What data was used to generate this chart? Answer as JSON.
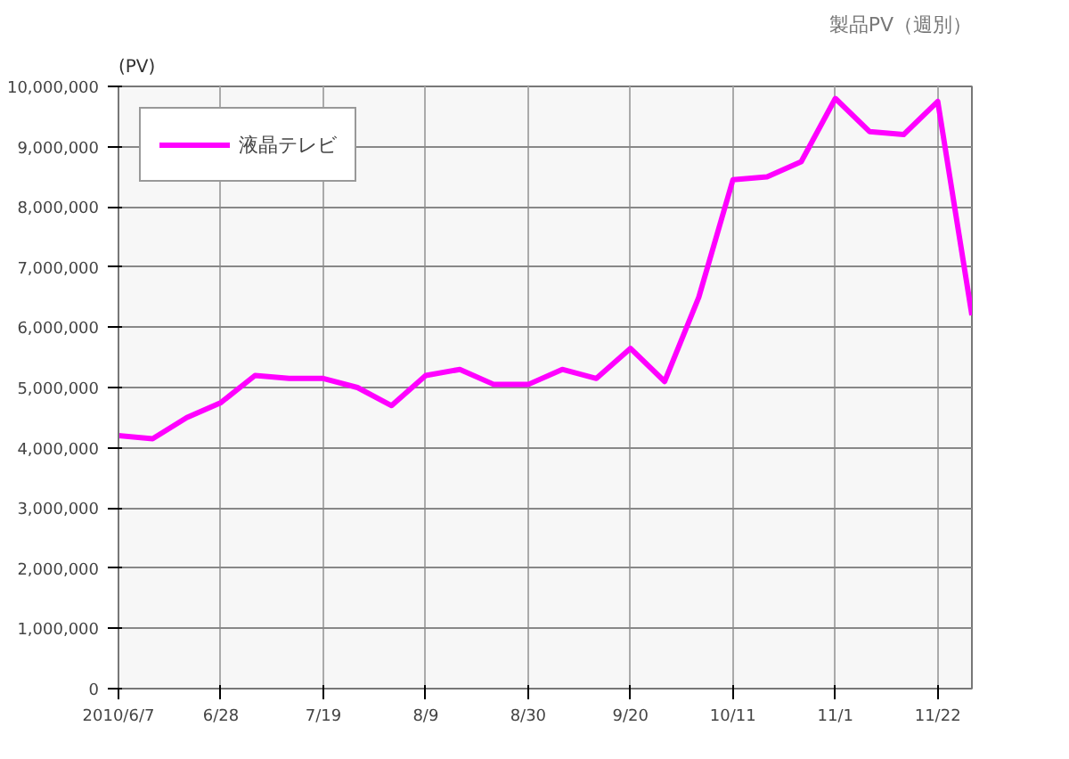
{
  "chart_data": {
    "type": "line",
    "title": "製品PV（週別）",
    "ylabel": "(PV)",
    "x": [
      "2010-06-07",
      "2010-06-14",
      "2010-06-21",
      "2010-06-28",
      "2010-07-05",
      "2010-07-12",
      "2010-07-19",
      "2010-07-26",
      "2010-08-02",
      "2010-08-09",
      "2010-08-16",
      "2010-08-23",
      "2010-08-30",
      "2010-09-06",
      "2010-09-13",
      "2010-09-20",
      "2010-09-27",
      "2010-10-04",
      "2010-10-11",
      "2010-10-18",
      "2010-10-25",
      "2010-11-01",
      "2010-11-08",
      "2010-11-15",
      "2010-11-22",
      "2010-11-29"
    ],
    "series": [
      {
        "name": "液晶テレビ",
        "color": "#ff00ff",
        "values": [
          4200000,
          4150000,
          4500000,
          4750000,
          5200000,
          5150000,
          5150000,
          5000000,
          4700000,
          5200000,
          5300000,
          5050000,
          5050000,
          5300000,
          5150000,
          5650000,
          5100000,
          6500000,
          8450000,
          8500000,
          8750000,
          9800000,
          9250000,
          9200000,
          9750000,
          6200000
        ]
      }
    ],
    "xlim": [
      "2010-06-07",
      "2010-11-29"
    ],
    "xticks": [
      {
        "value": "2010-06-07",
        "label": "2010/6/7"
      },
      {
        "value": "2010-06-28",
        "label": "6/28"
      },
      {
        "value": "2010-07-19",
        "label": "7/19"
      },
      {
        "value": "2010-08-09",
        "label": "8/9"
      },
      {
        "value": "2010-08-30",
        "label": "8/30"
      },
      {
        "value": "2010-09-20",
        "label": "9/20"
      },
      {
        "value": "2010-10-11",
        "label": "10/11"
      },
      {
        "value": "2010-11-01",
        "label": "11/1"
      },
      {
        "value": "2010-11-22",
        "label": "11/22"
      }
    ],
    "ylim": [
      0,
      10000000
    ],
    "yticks": [
      0,
      {
        "value": 1000000,
        "label": "1,000,000"
      },
      {
        "value": 2000000,
        "label": "2,000,000"
      },
      {
        "value": 3000000,
        "label": "3,000,000"
      },
      {
        "value": 4000000,
        "label": "4,000,000"
      },
      {
        "value": 5000000,
        "label": "5,000,000"
      },
      {
        "value": 6000000,
        "label": "6,000,000"
      },
      {
        "value": 7000000,
        "label": "7,000,000"
      },
      {
        "value": 8000000,
        "label": "8,000,000"
      },
      {
        "value": 9000000,
        "label": "9,000,000"
      },
      {
        "value": 10000000,
        "label": "10,000,000"
      }
    ],
    "grid": true,
    "legend": "top left",
    "marker": "none",
    "line_style": "solid"
  }
}
